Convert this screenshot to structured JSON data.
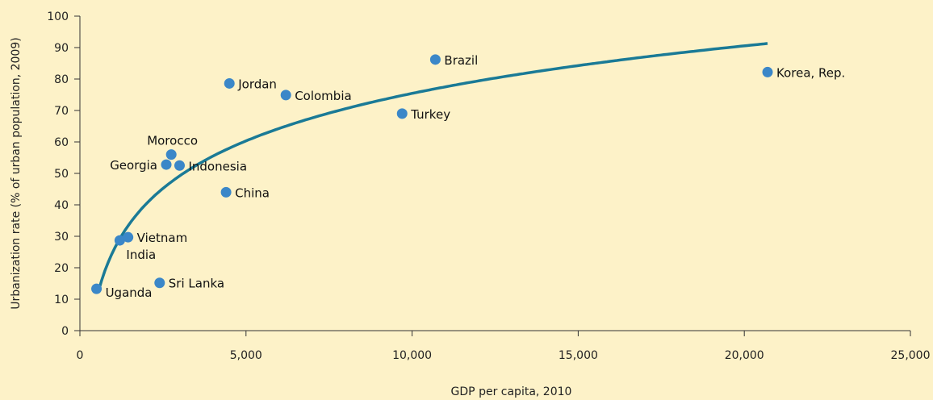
{
  "chart_data": {
    "type": "scatter",
    "title": "",
    "xlabel": "GDP per capita, 2010",
    "ylabel": "Urbanization rate (% of urban population, 2009)",
    "xlim": [
      0,
      25000
    ],
    "ylim": [
      0,
      100
    ],
    "x_ticks": [
      0,
      5000,
      10000,
      15000,
      20000,
      25000
    ],
    "x_tick_labels": [
      "0",
      "5,000",
      "10,000",
      "15,000",
      "20,000",
      "25,000"
    ],
    "y_ticks": [
      0,
      10,
      20,
      30,
      40,
      50,
      60,
      70,
      80,
      90,
      100
    ],
    "y_tick_labels": [
      "0",
      "10",
      "20",
      "30",
      "40",
      "50",
      "60",
      "70",
      "80",
      "90",
      "100"
    ],
    "grid": false,
    "points": [
      {
        "label": "Uganda",
        "x": 500,
        "y": 13.3,
        "label_pos": "right-below"
      },
      {
        "label": "India",
        "x": 1200,
        "y": 28.7,
        "label_pos": "below-right"
      },
      {
        "label": "Vietnam",
        "x": 1450,
        "y": 29.7,
        "label_pos": "right"
      },
      {
        "label": "Sri Lanka",
        "x": 2400,
        "y": 15.2,
        "label_pos": "right"
      },
      {
        "label": "Georgia",
        "x": 2600,
        "y": 52.8,
        "label_pos": "left"
      },
      {
        "label": "Morocco",
        "x": 2750,
        "y": 56.0,
        "label_pos": "above"
      },
      {
        "label": "Indonesia",
        "x": 3000,
        "y": 52.5,
        "label_pos": "right"
      },
      {
        "label": "China",
        "x": 4400,
        "y": 44.0,
        "label_pos": "right"
      },
      {
        "label": "Jordan",
        "x": 4500,
        "y": 78.6,
        "label_pos": "right"
      },
      {
        "label": "Colombia",
        "x": 6200,
        "y": 74.9,
        "label_pos": "right"
      },
      {
        "label": "Turkey",
        "x": 9700,
        "y": 69.0,
        "label_pos": "right"
      },
      {
        "label": "Brazil",
        "x": 10700,
        "y": 86.2,
        "label_pos": "right"
      },
      {
        "label": "Korea, Rep.",
        "x": 20700,
        "y": 82.2,
        "label_pos": "right"
      }
    ],
    "trendline": {
      "type": "logarithmic",
      "x_range": [
        550,
        20700
      ]
    },
    "colors": {
      "points": "#3b87c8",
      "trendline": "#1a7a96",
      "background": "#fdf2c8",
      "axis": "#333333"
    }
  }
}
